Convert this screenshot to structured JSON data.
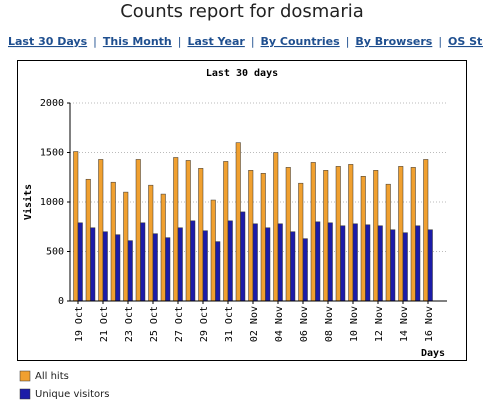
{
  "header": {
    "title": "Counts report for dosmaria",
    "nav": [
      "Last 30 Days",
      "This Month",
      "Last Year",
      "By Countries",
      "By Browsers",
      "OS Stats"
    ],
    "separator": "|"
  },
  "chart_data": {
    "type": "bar",
    "title": "Last 30 days",
    "y_label": "Visits",
    "x_label": "Days",
    "categories": [
      "19 Oct",
      null,
      "21 Oct",
      null,
      "23 Oct",
      null,
      "25 Oct",
      null,
      "27 Oct",
      null,
      "29 Oct",
      null,
      "31 Oct",
      null,
      "02 Nov",
      null,
      "04 Nov",
      null,
      "06 Nov",
      null,
      "08 Nov",
      null,
      "10 Nov",
      null,
      "12 Nov",
      null,
      "14 Nov",
      null,
      "16 Nov"
    ],
    "series": [
      {
        "name": "All hits",
        "color": "#f0a030",
        "values": [
          1510,
          1230,
          1430,
          1200,
          1100,
          1430,
          1170,
          1080,
          1450,
          1420,
          1340,
          1020,
          1410,
          1600,
          1320,
          1290,
          1500,
          1350,
          1190,
          1400,
          1320,
          1360,
          1380,
          1260,
          1320,
          1180,
          1360,
          1350,
          1430
        ]
      },
      {
        "name": "Unique visitors",
        "color": "#1c1ca8",
        "values": [
          790,
          740,
          700,
          670,
          610,
          790,
          680,
          640,
          740,
          810,
          710,
          600,
          810,
          900,
          780,
          740,
          780,
          700,
          630,
          800,
          790,
          760,
          780,
          770,
          760,
          720,
          690,
          760,
          720
        ]
      }
    ],
    "ylim": [
      0,
      2000
    ],
    "yticks": [
      0,
      500,
      1000,
      1500,
      2000
    ],
    "grid": true
  }
}
